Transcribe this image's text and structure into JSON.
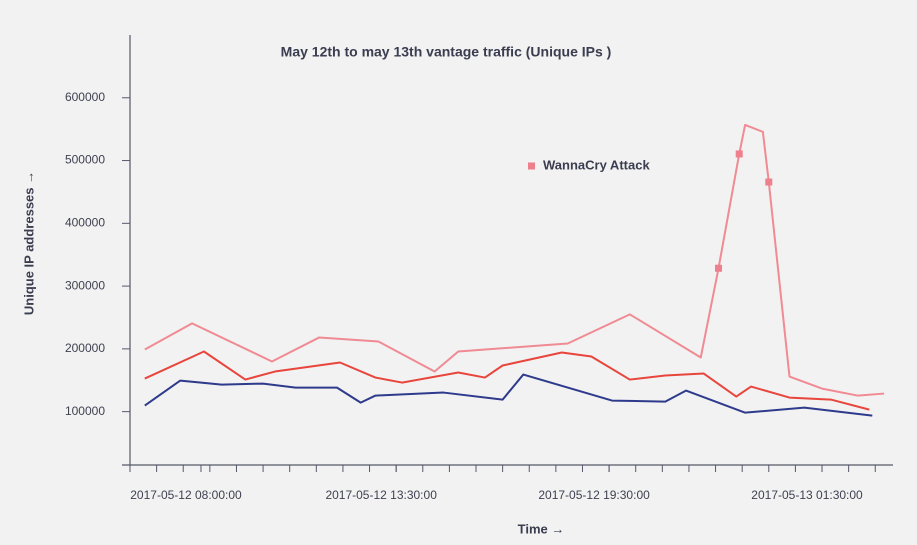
{
  "chart_data": {
    "type": "line",
    "title": "May 12th to may 13th vantage traffic (Unique IPs )",
    "xlabel": "Time →",
    "ylabel": "Unique IP addresses →",
    "xlim": [
      "2017-05-12 06:00:00",
      "2017-05-13 03:30:00"
    ],
    "xticks": [
      {
        "value": "2017-05-12 08:00:00",
        "label": "2017-05-12 08:00:00"
      },
      {
        "value": "2017-05-12 13:30:00",
        "label": "2017-05-12 13:30:00"
      },
      {
        "value": "2017-05-12 19:30:00",
        "label": "2017-05-12 19:30:00"
      },
      {
        "value": "2017-05-13 01:30:00",
        "label": "2017-05-13 01:30:00"
      }
    ],
    "ylim": [
      15000,
      700000
    ],
    "yticks": [
      100000,
      200000,
      300000,
      400000,
      500000,
      600000
    ],
    "grid": false,
    "series": [
      {
        "color": "#f08a93",
        "x": [
          "2017-05-12 06:25:00",
          "2017-05-12 07:45:00",
          "2017-05-12 10:00:00",
          "2017-05-12 11:20:00",
          "2017-05-12 13:00:00",
          "2017-05-12 14:35:00",
          "2017-05-12 15:15:00",
          "2017-05-12 18:20:00",
          "2017-05-12 20:05:00",
          "2017-05-12 22:05:00",
          "2017-05-12 22:35:00",
          "2017-05-12 23:10:00",
          "2017-05-12 23:20:00",
          "2017-05-12 23:50:00",
          "2017-05-13 00:00:00",
          "2017-05-13 00:35:00",
          "2017-05-13 01:30:00",
          "2017-05-13 02:30:00",
          "2017-05-13 03:15:00"
        ],
        "values": [
          199000,
          240600,
          179900,
          218200,
          211800,
          163900,
          195800,
          208600,
          255000,
          186300,
          328400,
          510500,
          556800,
          545700,
          465800,
          155900,
          136700,
          125600,
          128800
        ]
      },
      {
        "color": "#e8453c",
        "x": [
          "2017-05-12 06:25:00",
          "2017-05-12 08:05:00",
          "2017-05-12 09:15:00",
          "2017-05-12 10:05:00",
          "2017-05-12 11:55:00",
          "2017-05-12 12:55:00",
          "2017-05-12 13:40:00",
          "2017-05-12 15:15:00",
          "2017-05-12 16:00:00",
          "2017-05-12 16:30:00",
          "2017-05-12 18:10:00",
          "2017-05-12 19:00:00",
          "2017-05-12 20:05:00",
          "2017-05-12 21:05:00",
          "2017-05-12 22:10:00",
          "2017-05-12 23:05:00",
          "2017-05-12 23:30:00",
          "2017-05-13 00:35:00",
          "2017-05-13 01:45:00",
          "2017-05-13 02:50:00"
        ],
        "values": [
          152700,
          195800,
          151100,
          163900,
          178300,
          154300,
          146300,
          162300,
          154300,
          173500,
          194200,
          187900,
          151100,
          157500,
          160700,
          124000,
          139900,
          122400,
          119200,
          103200
        ]
      },
      {
        "color": "#2e3a8c",
        "x": [
          "2017-05-12 06:25:00",
          "2017-05-12 07:25:00",
          "2017-05-12 08:35:00",
          "2017-05-12 09:45:00",
          "2017-05-12 10:40:00",
          "2017-05-12 11:50:00",
          "2017-05-12 12:30:00",
          "2017-05-12 12:55:00",
          "2017-05-12 14:50:00",
          "2017-05-12 16:30:00",
          "2017-05-12 17:05:00",
          "2017-05-12 19:35:00",
          "2017-05-12 21:05:00",
          "2017-05-12 21:40:00",
          "2017-05-12 23:20:00",
          "2017-05-13 01:00:00",
          "2017-05-13 02:55:00"
        ],
        "values": [
          109600,
          149500,
          143100,
          144700,
          138300,
          138300,
          114400,
          125600,
          130400,
          119200,
          159100,
          117600,
          116000,
          133500,
          98400,
          106400,
          93600
        ]
      },
      {
        "name": "WannaCry Attack",
        "type": "scatter",
        "marker": "square",
        "color": "#ee7f8c",
        "x": [
          "2017-05-12 22:35:00",
          "2017-05-12 23:10:00",
          "2017-05-13 00:00:00"
        ],
        "values": [
          328400,
          510500,
          465800
        ]
      }
    ]
  }
}
